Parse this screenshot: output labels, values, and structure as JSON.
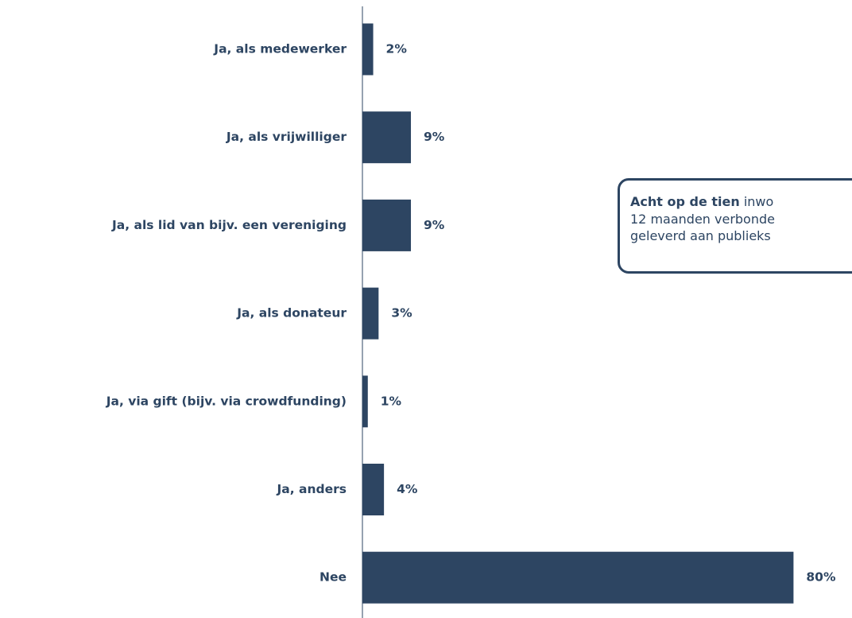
{
  "chart_data": {
    "type": "bar",
    "orientation": "horizontal",
    "categories": [
      "Ja, als medewerker",
      "Ja, als vrijwilliger",
      "Ja, als lid van bijv. een vereniging",
      "Ja, als donateur",
      "Ja, via gift (bijv. via crowdfunding)",
      "Ja, anders",
      "Nee"
    ],
    "values": [
      2,
      9,
      9,
      3,
      1,
      4,
      80
    ],
    "value_labels": [
      "2%",
      "9%",
      "9%",
      "3%",
      "1%",
      "4%",
      "80%"
    ],
    "color": "#2d4562",
    "annotation": {
      "bold": "Acht op de tien",
      "lines": [
        " inwo",
        "12 maanden verbonde",
        "geleverd aan publieks"
      ]
    }
  }
}
